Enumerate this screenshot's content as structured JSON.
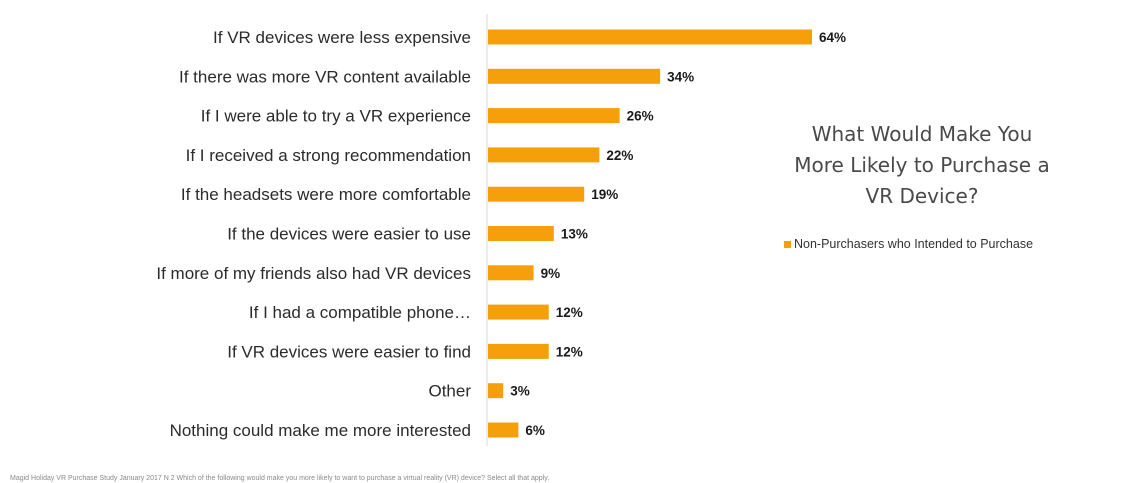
{
  "chart_data": {
    "type": "bar",
    "orientation": "horizontal",
    "title": "What Would Make You More Likely to Purchase a VR Device?",
    "title_lines": [
      "What Would Make You",
      "More Likely to Purchase a",
      "VR Device?"
    ],
    "categories": [
      "If VR devices were less expensive",
      "If there was more VR content available",
      "If I were able to try a VR experience",
      "If I received a strong recommendation",
      "If the headsets were more comfortable",
      "If the devices were easier to use",
      "If more of my friends also had VR devices",
      "If I had a compatible phone…",
      "If VR devices were easier to find",
      "Other",
      "Nothing could make me more interested"
    ],
    "series": [
      {
        "name": "Non-Purchasers who Intended to Purchase",
        "values": [
          64,
          34,
          26,
          22,
          19,
          13,
          9,
          12,
          12,
          3,
          6
        ],
        "value_labels": [
          "64%",
          "34%",
          "26%",
          "22%",
          "19%",
          "13%",
          "9%",
          "12%",
          "12%",
          "3%",
          "6%"
        ]
      }
    ],
    "xlim": [
      0,
      70
    ],
    "grid": false,
    "legend": "right",
    "colors": {
      "bar": "#F5A00A",
      "axis": "#d9d9d9"
    }
  },
  "footnote": "Magid Holiday VR Purchase Study January 2017  N 2 Which of the following would make you more likely to want to purchase a virtual reality (VR) device? Select all that apply."
}
